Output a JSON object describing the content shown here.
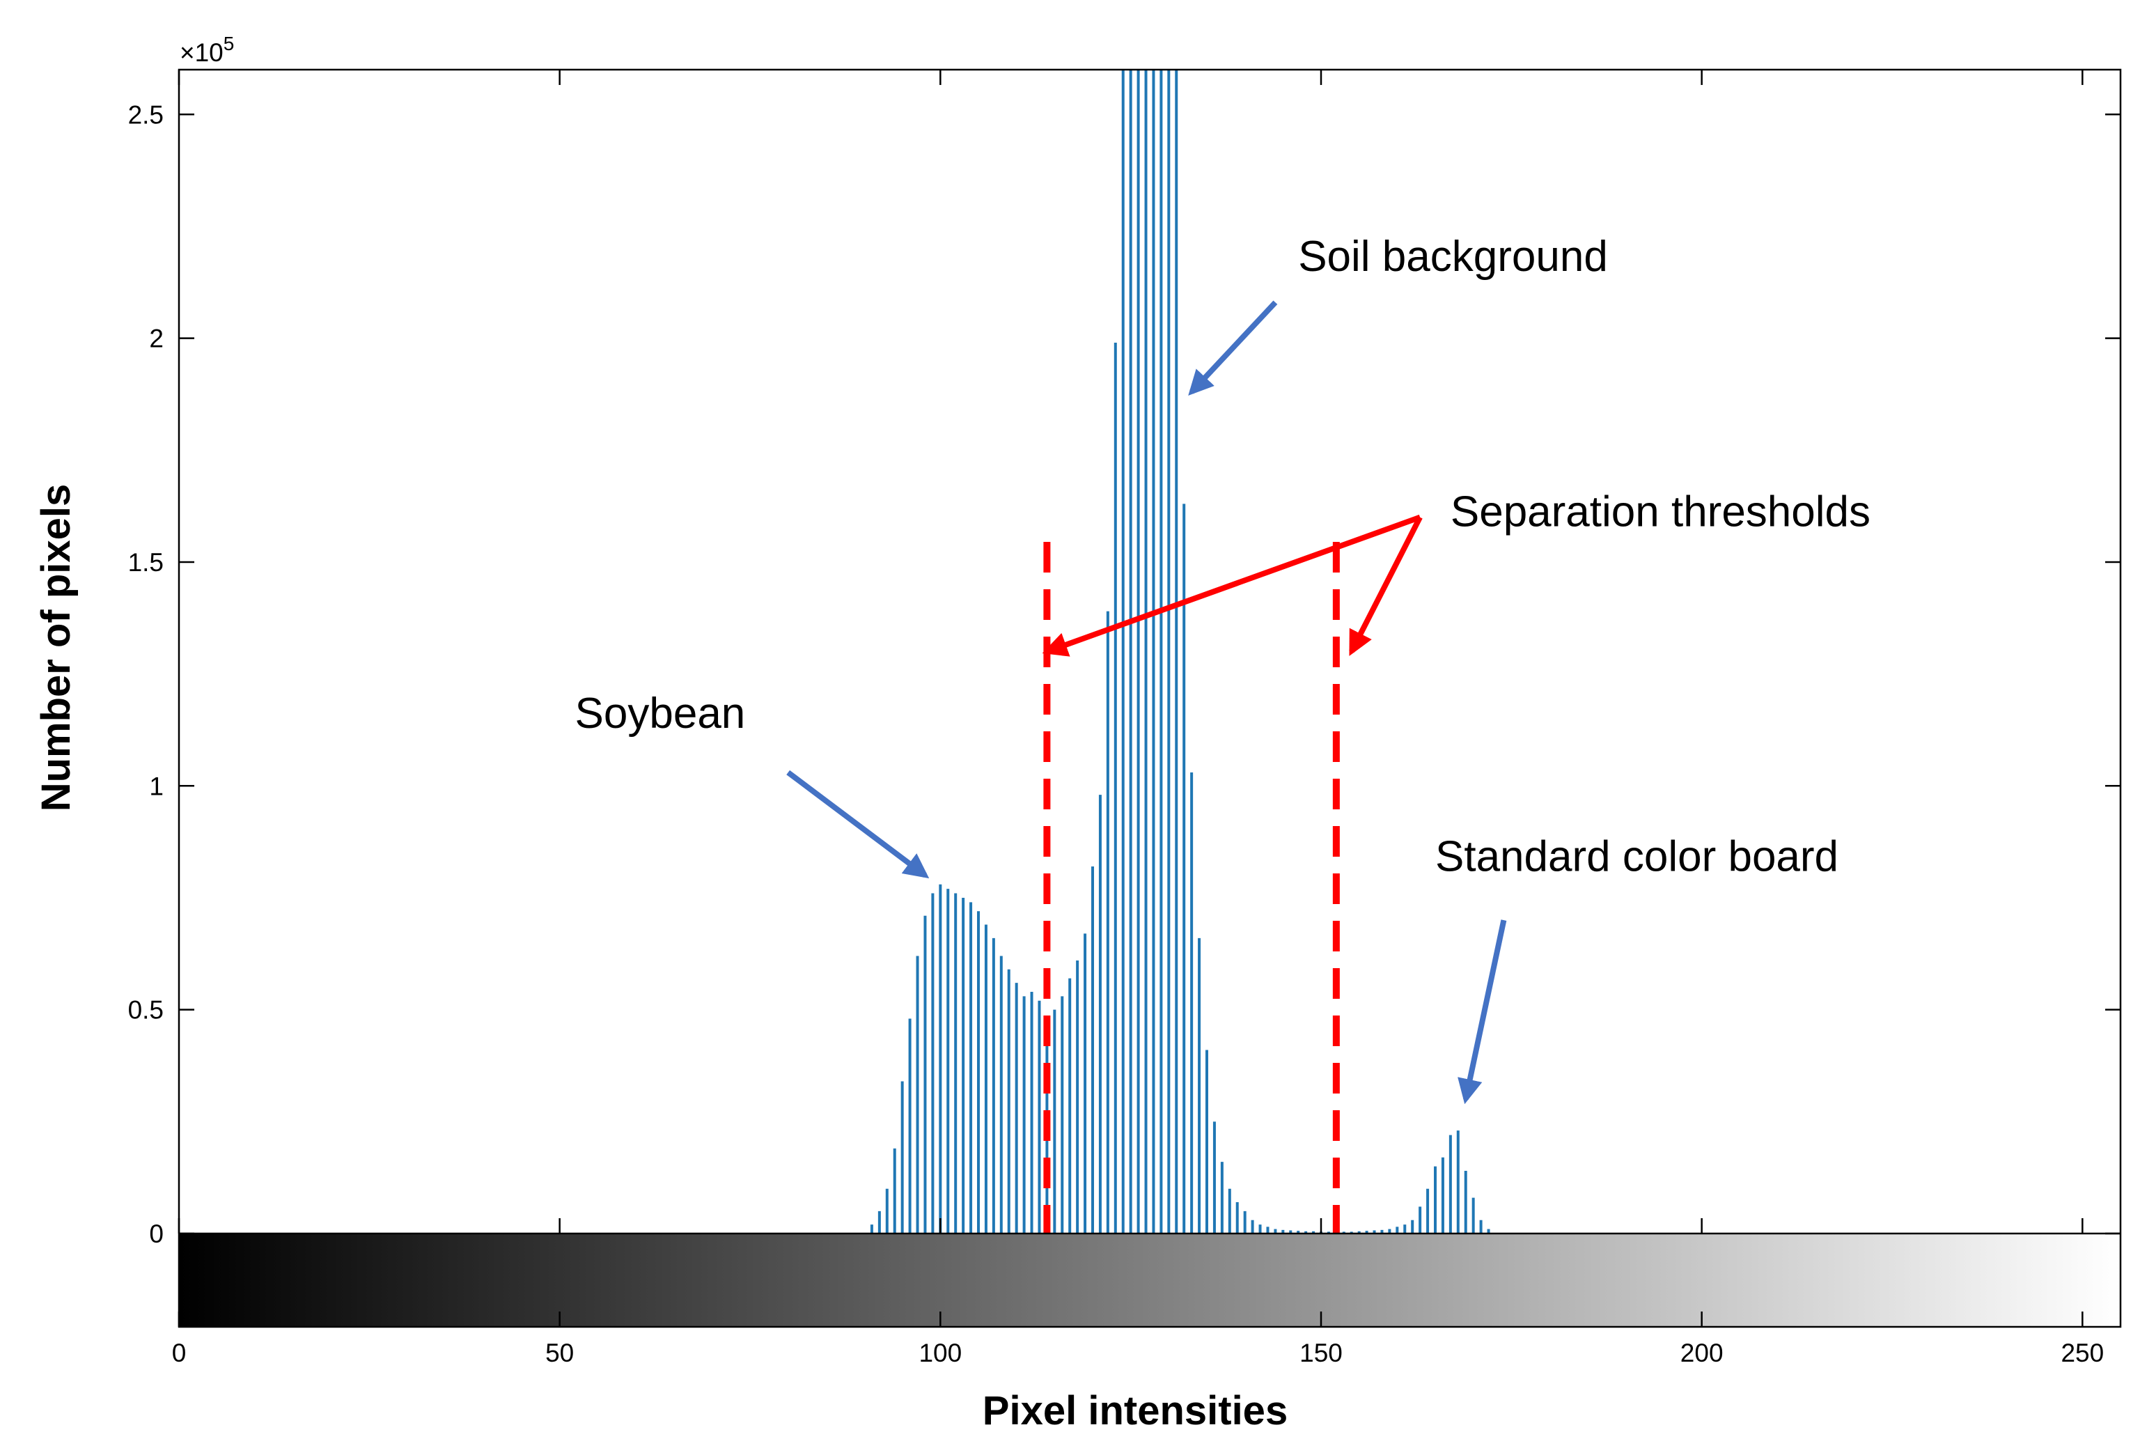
{
  "chart_data": {
    "type": "bar",
    "title": "",
    "xlabel": "Pixel intensities",
    "ylabel": "Number of pixels",
    "xlim": [
      0,
      255
    ],
    "ylim": [
      0,
      260000
    ],
    "y_exponent_base": "×10",
    "y_exponent_power": "5",
    "x_ticks": [
      0,
      50,
      100,
      150,
      200,
      250
    ],
    "x_tick_labels": [
      "0",
      "50",
      "100",
      "150",
      "200",
      "250"
    ],
    "y_ticks": [
      0,
      50000,
      100000,
      150000,
      200000,
      250000
    ],
    "y_tick_labels": [
      "0",
      "0.5",
      "1",
      "1.5",
      "2",
      "2.5"
    ],
    "grid": false,
    "colorbar": "grayscale gradient from 0 (black) to 255 (white) below the x axis",
    "series_color": "#1f77b4",
    "threshold_color": "#ff0000",
    "annotation_arrow_color": "#4472c4",
    "bars": {
      "x": [
        91,
        92,
        93,
        94,
        95,
        96,
        97,
        98,
        99,
        100,
        101,
        102,
        103,
        104,
        105,
        106,
        107,
        108,
        109,
        110,
        111,
        112,
        113,
        114,
        115,
        116,
        117,
        118,
        119,
        120,
        121,
        122,
        123,
        124,
        125,
        126,
        127,
        128,
        129,
        130,
        131,
        132,
        133,
        134,
        135,
        136,
        137,
        138,
        139,
        140,
        141,
        142,
        143,
        144,
        145,
        146,
        147,
        148,
        149,
        150,
        151,
        152,
        153,
        154,
        155,
        156,
        157,
        158,
        159,
        160,
        161,
        162,
        163,
        164,
        165,
        166,
        167,
        168,
        169,
        170,
        171,
        172
      ],
      "y": [
        2000,
        5000,
        10000,
        19000,
        34000,
        48000,
        62000,
        71000,
        76000,
        78000,
        77000,
        76000,
        75000,
        74000,
        72000,
        69000,
        66000,
        62000,
        59000,
        56000,
        53000,
        54000,
        52000,
        48000,
        50000,
        53000,
        57000,
        61000,
        67000,
        82000,
        98000,
        139000,
        199000,
        262000,
        262000,
        262000,
        262000,
        262000,
        262000,
        262000,
        262000,
        163000,
        103000,
        66000,
        41000,
        25000,
        16000,
        10000,
        7000,
        5000,
        3000,
        2000,
        1500,
        1000,
        800,
        700,
        600,
        500,
        500,
        400,
        400,
        400,
        400,
        400,
        500,
        600,
        700,
        800,
        1000,
        1500,
        2000,
        3000,
        6000,
        10000,
        15000,
        17000,
        22000,
        23000,
        14000,
        8000,
        3000,
        1000
      ]
    },
    "thresholds": [
      114,
      152
    ],
    "annotations": [
      {
        "text": "Soil background",
        "text_x": 147,
        "text_y": 215000,
        "arrow_from": [
          144,
          208000
        ],
        "arrow_to": [
          133,
          188000
        ],
        "kind": "blue"
      },
      {
        "text": "Separation thresholds",
        "text_x": 167,
        "text_y": 158000,
        "arrow_from": [
          163,
          160000
        ],
        "arrow_to": [
          114,
          130000
        ],
        "arrow2_from": [
          163,
          160000
        ],
        "arrow2_to": [
          154,
          130000
        ],
        "kind": "red"
      },
      {
        "text": "Soybean",
        "text_x": 52,
        "text_y": 113000,
        "arrow_from": [
          80,
          103000
        ],
        "arrow_to": [
          98,
          80000
        ],
        "kind": "blue"
      },
      {
        "text": "Standard color board",
        "text_x": 165,
        "text_y": 81000,
        "arrow_from": [
          174,
          70000
        ],
        "arrow_to": [
          169,
          30000
        ],
        "kind": "blue"
      }
    ]
  }
}
